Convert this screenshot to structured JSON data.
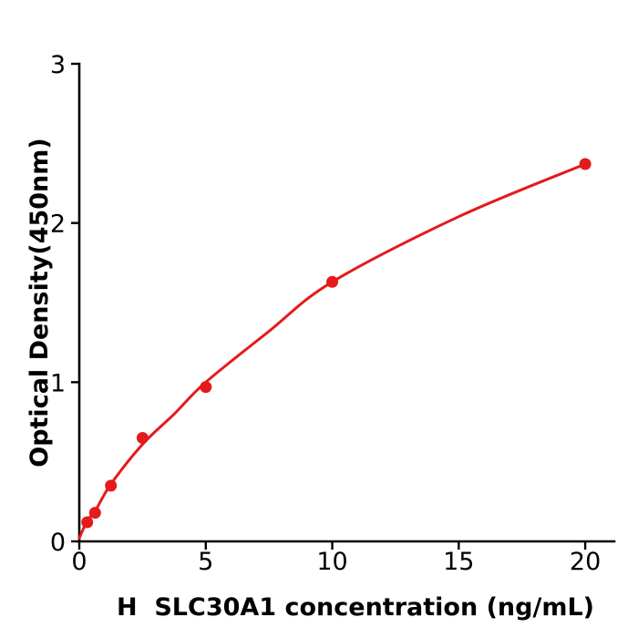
{
  "page": {
    "background": "#ffffff"
  },
  "chart_data": {
    "type": "scatter",
    "title": "",
    "xlabel": "H  SLC30A1 concentration (ng/mL)",
    "ylabel": "Optical Density(450nm)",
    "x": [
      0.3125,
      0.625,
      1.25,
      2.5,
      5,
      10,
      20
    ],
    "y": [
      0.12,
      0.18,
      0.35,
      0.65,
      0.97,
      1.63,
      2.37
    ],
    "fit_curve": [
      [
        0,
        0.02
      ],
      [
        0.3125,
        0.13
      ],
      [
        0.625,
        0.19
      ],
      [
        1.25,
        0.36
      ],
      [
        2.5,
        0.61
      ],
      [
        3.75,
        0.8
      ],
      [
        5,
        1.0
      ],
      [
        7.5,
        1.32
      ],
      [
        10,
        1.63
      ],
      [
        15,
        2.04
      ],
      [
        20,
        2.37
      ]
    ],
    "x_ticks": [
      0,
      5,
      10,
      15,
      20
    ],
    "y_ticks": [
      0,
      1,
      2,
      3
    ],
    "xlim": [
      0,
      21.15
    ],
    "ylim": [
      0,
      3
    ],
    "grid": false,
    "legend": null,
    "point_color": "#e41a1c",
    "line_color": "#e41a1c",
    "axis_color": "#000000",
    "marker_radius": 6.5,
    "curve_width": 3,
    "axis_width": 2.6,
    "tick_length": 9
  }
}
